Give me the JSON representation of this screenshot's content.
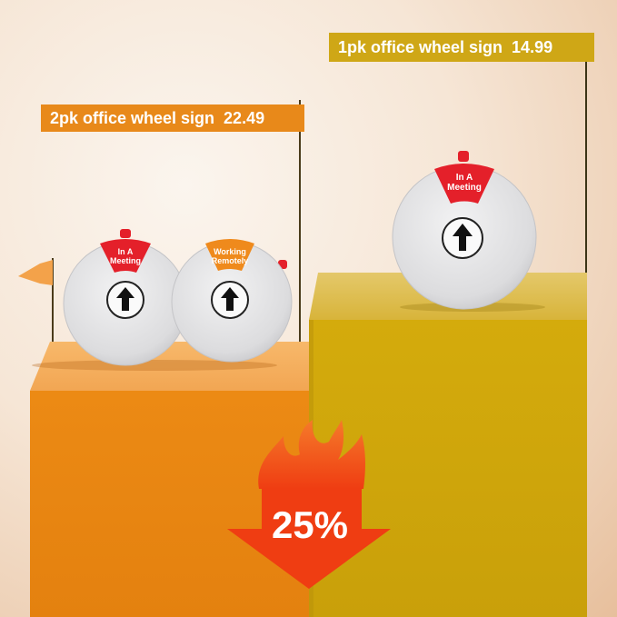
{
  "flags": {
    "left": {
      "title": "2pk office wheel sign",
      "price": "22.49"
    },
    "right": {
      "title": "1pk office wheel sign",
      "price": "14.99"
    }
  },
  "discs": {
    "left_a": "In A Meeting",
    "left_b": "Working Remotely",
    "right": "In A Meeting"
  },
  "discount": "25%",
  "colors": {
    "orange": "#e8891a",
    "gold": "#cfa716",
    "red": "#e4202a",
    "flame": "#f04a1c"
  }
}
